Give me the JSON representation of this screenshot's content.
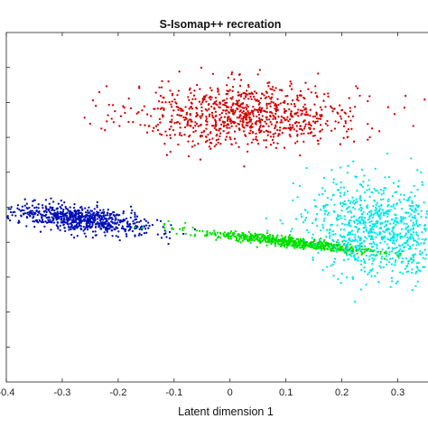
{
  "chart_data": {
    "type": "scatter",
    "title": "S-Isomap++ recreation",
    "xlabel": "Latent dimension 1",
    "ylabel": "",
    "xlim": [
      -0.4,
      0.375
    ],
    "ylim": [
      -1.0,
      1.0
    ],
    "x_ticks": [
      -0.4,
      -0.3,
      -0.2,
      -0.1,
      0,
      0.1,
      0.2,
      0.3
    ],
    "x_tick_labels": [
      "-0.4",
      "-0.3",
      "-0.2",
      "-0.1",
      "0",
      "0.1",
      "0.2",
      "0.3"
    ],
    "y_ticks": [
      -0.8,
      -0.6,
      -0.4,
      -0.2,
      0,
      0.2,
      0.4,
      0.6,
      0.8
    ],
    "grid": false,
    "legend": "none",
    "series": [
      {
        "color": "#d40000",
        "cluster": {
          "center": [
            0.03,
            0.53
          ],
          "spread": [
            0.1,
            0.09
          ],
          "angle_deg": 3,
          "count": 900
        },
        "points": [
          [
            -0.24,
            0.58
          ],
          [
            -0.23,
            0.45
          ],
          [
            0.21,
            0.4
          ],
          [
            0.22,
            0.52
          ],
          [
            -0.11,
            0.72
          ],
          [
            0.05,
            0.76
          ]
        ]
      },
      {
        "color": "#0010b8",
        "cluster": {
          "center": [
            -0.265,
            -0.07
          ],
          "spread": [
            0.065,
            0.032
          ],
          "angle_deg": -28,
          "count": 750
        },
        "points": [
          [
            -0.35,
            0.04
          ],
          [
            -0.32,
            0.05
          ],
          [
            -0.2,
            -0.17
          ],
          [
            -0.17,
            -0.16
          ],
          [
            -0.11,
            -0.21
          ]
        ]
      },
      {
        "color": "#00e000",
        "cluster": {
          "center": [
            0.105,
            -0.2
          ],
          "spread": [
            0.09,
            0.014
          ],
          "angle_deg": -20,
          "count": 650
        },
        "points": [
          [
            -0.11,
            -0.08
          ],
          [
            -0.08,
            -0.09
          ]
        ]
      },
      {
        "color": "#00e6e6",
        "cluster": {
          "center": [
            0.265,
            -0.12
          ],
          "spread": [
            0.06,
            0.14
          ],
          "angle_deg": 8,
          "count": 900
        },
        "points": [
          [
            0.27,
            0.1
          ],
          [
            0.25,
            0.06
          ],
          [
            0.2,
            -0.38
          ],
          [
            0.22,
            -0.41
          ]
        ]
      }
    ]
  }
}
